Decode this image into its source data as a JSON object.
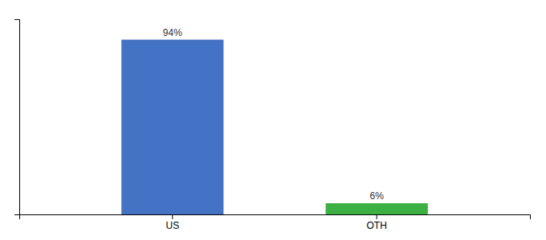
{
  "chart_data": {
    "type": "bar",
    "categories": [
      "US",
      "OTH"
    ],
    "values": [
      94,
      6
    ],
    "value_labels": [
      "94%",
      "6%"
    ],
    "data_labels": true,
    "colors": [
      "#4472c4",
      "#3cb043"
    ],
    "ylim": [
      0,
      105
    ],
    "yticks": [],
    "tick_labels": "x"
  }
}
